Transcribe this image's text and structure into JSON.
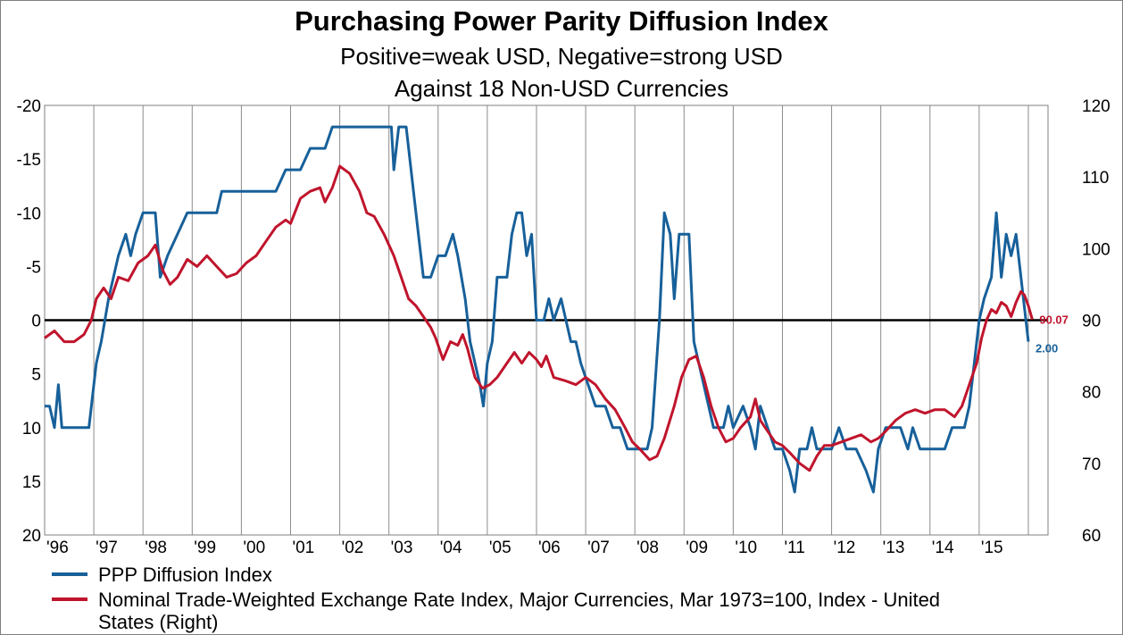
{
  "chart_data": {
    "type": "line",
    "title": "Purchasing Power Parity Diffusion Index",
    "subtitle_1": "Positive=weak USD, Negative=strong USD",
    "subtitle_2": "Against 18 Non-USD Currencies",
    "x_tick_labels": [
      "'96",
      "'97",
      "'98",
      "'99",
      "'00",
      "'01",
      "'02",
      "'03",
      "'04",
      "'05",
      "'06",
      "'07",
      "'08",
      "'09",
      "'10",
      "'11",
      "'12",
      "'13",
      "'14",
      "'15"
    ],
    "xlim": [
      1996.0,
      2016.4
    ],
    "left_axis": {
      "ylim": [
        -20,
        20
      ],
      "inverted": true,
      "ticks": [
        -20,
        -15,
        -10,
        -5,
        0,
        5,
        10,
        15,
        20
      ]
    },
    "right_axis": {
      "ylim": [
        60,
        120
      ],
      "ticks": [
        120,
        110,
        100,
        90,
        80,
        70,
        60
      ]
    },
    "zero_line": 0,
    "grid": "vertical",
    "legend_position": "bottom",
    "series": [
      {
        "name": "PPP Diffusion Index",
        "axis": "left",
        "color": "#17609a",
        "end_label": "2.00",
        "points": [
          [
            1996.0,
            8
          ],
          [
            1996.1,
            8
          ],
          [
            1996.2,
            10
          ],
          [
            1996.28,
            6
          ],
          [
            1996.35,
            10
          ],
          [
            1996.9,
            10
          ],
          [
            1997.05,
            4
          ],
          [
            1997.15,
            2
          ],
          [
            1997.3,
            -2
          ],
          [
            1997.5,
            -6
          ],
          [
            1997.65,
            -8
          ],
          [
            1997.75,
            -6
          ],
          [
            1997.85,
            -8
          ],
          [
            1998.0,
            -10
          ],
          [
            1998.25,
            -10
          ],
          [
            1998.35,
            -4
          ],
          [
            1998.5,
            -6
          ],
          [
            1998.7,
            -8
          ],
          [
            1998.9,
            -10
          ],
          [
            1999.5,
            -10
          ],
          [
            1999.6,
            -12
          ],
          [
            2000.7,
            -12
          ],
          [
            2000.9,
            -14
          ],
          [
            2001.2,
            -14
          ],
          [
            2001.4,
            -16
          ],
          [
            2001.7,
            -16
          ],
          [
            2001.85,
            -18
          ],
          [
            2003.05,
            -18
          ],
          [
            2003.1,
            -14
          ],
          [
            2003.2,
            -18
          ],
          [
            2003.35,
            -18
          ],
          [
            2003.5,
            -12
          ],
          [
            2003.6,
            -8
          ],
          [
            2003.7,
            -4
          ],
          [
            2003.85,
            -4
          ],
          [
            2004.0,
            -6
          ],
          [
            2004.15,
            -6
          ],
          [
            2004.3,
            -8
          ],
          [
            2004.4,
            -6
          ],
          [
            2004.55,
            -2
          ],
          [
            2004.65,
            2
          ],
          [
            2004.75,
            4
          ],
          [
            2004.85,
            6
          ],
          [
            2004.92,
            8
          ],
          [
            2005.0,
            4
          ],
          [
            2005.1,
            2
          ],
          [
            2005.2,
            -4
          ],
          [
            2005.4,
            -4
          ],
          [
            2005.5,
            -8
          ],
          [
            2005.6,
            -10
          ],
          [
            2005.7,
            -10
          ],
          [
            2005.8,
            -6
          ],
          [
            2005.9,
            -8
          ],
          [
            2006.0,
            0
          ],
          [
            2006.15,
            0
          ],
          [
            2006.25,
            -2
          ],
          [
            2006.35,
            0
          ],
          [
            2006.5,
            -2
          ],
          [
            2006.7,
            2
          ],
          [
            2006.8,
            2
          ],
          [
            2006.9,
            4
          ],
          [
            2007.05,
            6
          ],
          [
            2007.2,
            8
          ],
          [
            2007.4,
            8
          ],
          [
            2007.55,
            10
          ],
          [
            2007.7,
            10
          ],
          [
            2007.85,
            12
          ],
          [
            2008.25,
            12
          ],
          [
            2008.35,
            10
          ],
          [
            2008.5,
            0
          ],
          [
            2008.6,
            -10
          ],
          [
            2008.72,
            -8
          ],
          [
            2008.8,
            -2
          ],
          [
            2008.9,
            -8
          ],
          [
            2009.1,
            -8
          ],
          [
            2009.2,
            2
          ],
          [
            2009.3,
            4
          ],
          [
            2009.4,
            6
          ],
          [
            2009.6,
            10
          ],
          [
            2009.8,
            10
          ],
          [
            2009.9,
            8
          ],
          [
            2010.0,
            10
          ],
          [
            2010.2,
            8
          ],
          [
            2010.35,
            10
          ],
          [
            2010.45,
            12
          ],
          [
            2010.55,
            8
          ],
          [
            2010.7,
            10
          ],
          [
            2010.85,
            12
          ],
          [
            2011.0,
            12
          ],
          [
            2011.15,
            14
          ],
          [
            2011.25,
            16
          ],
          [
            2011.35,
            12
          ],
          [
            2011.5,
            12
          ],
          [
            2011.6,
            10
          ],
          [
            2011.7,
            12
          ],
          [
            2012.0,
            12
          ],
          [
            2012.15,
            10
          ],
          [
            2012.3,
            12
          ],
          [
            2012.5,
            12
          ],
          [
            2012.7,
            14
          ],
          [
            2012.85,
            16
          ],
          [
            2012.95,
            12
          ],
          [
            2013.1,
            10
          ],
          [
            2013.4,
            10
          ],
          [
            2013.55,
            12
          ],
          [
            2013.65,
            10
          ],
          [
            2013.8,
            12
          ],
          [
            2014.3,
            12
          ],
          [
            2014.45,
            10
          ],
          [
            2014.7,
            10
          ],
          [
            2014.8,
            8
          ],
          [
            2014.9,
            4
          ],
          [
            2015.0,
            0
          ],
          [
            2015.1,
            -2
          ],
          [
            2015.25,
            -4
          ],
          [
            2015.35,
            -10
          ],
          [
            2015.45,
            -4
          ],
          [
            2015.55,
            -8
          ],
          [
            2015.65,
            -6
          ],
          [
            2015.75,
            -8
          ],
          [
            2015.85,
            -4
          ],
          [
            2015.95,
            0
          ],
          [
            2016.0,
            2
          ]
        ]
      },
      {
        "name": "Nominal Trade-Weighted Exchange Rate Index, Major Currencies, Mar 1973=100, Index - United States  (Right)",
        "axis": "right",
        "color": "#c0142c",
        "end_label": "90.07",
        "points": [
          [
            1996.0,
            87.5
          ],
          [
            1996.2,
            88.5
          ],
          [
            1996.4,
            87.0
          ],
          [
            1996.6,
            87.0
          ],
          [
            1996.8,
            88.0
          ],
          [
            1996.95,
            90.0
          ],
          [
            1997.05,
            93.0
          ],
          [
            1997.2,
            94.5
          ],
          [
            1997.35,
            93.0
          ],
          [
            1997.5,
            96.0
          ],
          [
            1997.7,
            95.5
          ],
          [
            1997.9,
            98.0
          ],
          [
            1998.1,
            99.0
          ],
          [
            1998.25,
            100.5
          ],
          [
            1998.4,
            97.0
          ],
          [
            1998.55,
            95.0
          ],
          [
            1998.7,
            96.0
          ],
          [
            1998.9,
            98.5
          ],
          [
            1999.1,
            97.5
          ],
          [
            1999.3,
            99.0
          ],
          [
            1999.5,
            97.5
          ],
          [
            1999.7,
            96.0
          ],
          [
            1999.9,
            96.5
          ],
          [
            2000.1,
            98.0
          ],
          [
            2000.3,
            99.0
          ],
          [
            2000.5,
            101.0
          ],
          [
            2000.7,
            103.0
          ],
          [
            2000.9,
            104.0
          ],
          [
            2001.0,
            103.5
          ],
          [
            2001.2,
            107.0
          ],
          [
            2001.4,
            108.0
          ],
          [
            2001.6,
            108.5
          ],
          [
            2001.7,
            106.5
          ],
          [
            2001.85,
            108.5
          ],
          [
            2002.0,
            111.5
          ],
          [
            2002.2,
            110.5
          ],
          [
            2002.4,
            108.0
          ],
          [
            2002.55,
            105.0
          ],
          [
            2002.7,
            104.5
          ],
          [
            2002.9,
            102.0
          ],
          [
            2003.1,
            99.0
          ],
          [
            2003.2,
            97.0
          ],
          [
            2003.4,
            93.0
          ],
          [
            2003.55,
            92.0
          ],
          [
            2003.7,
            90.5
          ],
          [
            2003.85,
            89.0
          ],
          [
            2003.95,
            87.5
          ],
          [
            2004.1,
            84.5
          ],
          [
            2004.25,
            87.0
          ],
          [
            2004.4,
            86.5
          ],
          [
            2004.5,
            88.0
          ],
          [
            2004.6,
            86.0
          ],
          [
            2004.75,
            82.0
          ],
          [
            2004.9,
            80.5
          ],
          [
            2005.05,
            81.0
          ],
          [
            2005.2,
            82.0
          ],
          [
            2005.4,
            84.0
          ],
          [
            2005.55,
            85.5
          ],
          [
            2005.7,
            84.0
          ],
          [
            2005.85,
            85.5
          ],
          [
            2006.0,
            84.5
          ],
          [
            2006.1,
            83.5
          ],
          [
            2006.2,
            85.0
          ],
          [
            2006.35,
            82.0
          ],
          [
            2006.6,
            81.5
          ],
          [
            2006.8,
            81.0
          ],
          [
            2007.0,
            82.0
          ],
          [
            2007.2,
            81.0
          ],
          [
            2007.4,
            79.0
          ],
          [
            2007.6,
            77.5
          ],
          [
            2007.8,
            75.0
          ],
          [
            2007.95,
            73.0
          ],
          [
            2008.1,
            72.0
          ],
          [
            2008.3,
            70.5
          ],
          [
            2008.45,
            71.0
          ],
          [
            2008.6,
            73.5
          ],
          [
            2008.8,
            78.0
          ],
          [
            2008.95,
            82.0
          ],
          [
            2009.1,
            84.5
          ],
          [
            2009.25,
            85.0
          ],
          [
            2009.4,
            82.0
          ],
          [
            2009.55,
            78.0
          ],
          [
            2009.7,
            75.0
          ],
          [
            2009.85,
            73.0
          ],
          [
            2010.0,
            73.5
          ],
          [
            2010.15,
            75.0
          ],
          [
            2010.35,
            76.5
          ],
          [
            2010.45,
            79.0
          ],
          [
            2010.55,
            76.0
          ],
          [
            2010.7,
            74.5
          ],
          [
            2010.85,
            73.0
          ],
          [
            2011.0,
            72.5
          ],
          [
            2011.15,
            71.5
          ],
          [
            2011.35,
            70.0
          ],
          [
            2011.55,
            69.0
          ],
          [
            2011.7,
            71.0
          ],
          [
            2011.85,
            72.5
          ],
          [
            2012.0,
            72.5
          ],
          [
            2012.2,
            73.0
          ],
          [
            2012.4,
            73.5
          ],
          [
            2012.6,
            74.0
          ],
          [
            2012.8,
            73.0
          ],
          [
            2012.95,
            73.5
          ],
          [
            2013.1,
            74.5
          ],
          [
            2013.3,
            76.0
          ],
          [
            2013.5,
            77.0
          ],
          [
            2013.7,
            77.5
          ],
          [
            2013.9,
            77.0
          ],
          [
            2014.1,
            77.5
          ],
          [
            2014.3,
            77.5
          ],
          [
            2014.5,
            76.5
          ],
          [
            2014.65,
            78.0
          ],
          [
            2014.8,
            81.0
          ],
          [
            2014.95,
            84.0
          ],
          [
            2015.05,
            87.5
          ],
          [
            2015.15,
            90.0
          ],
          [
            2015.25,
            91.5
          ],
          [
            2015.35,
            91.0
          ],
          [
            2015.45,
            92.5
          ],
          [
            2015.55,
            92.0
          ],
          [
            2015.65,
            90.5
          ],
          [
            2015.75,
            92.5
          ],
          [
            2015.85,
            94.0
          ],
          [
            2015.92,
            93.5
          ],
          [
            2016.0,
            92.0
          ],
          [
            2016.08,
            90.1
          ]
        ]
      }
    ]
  }
}
